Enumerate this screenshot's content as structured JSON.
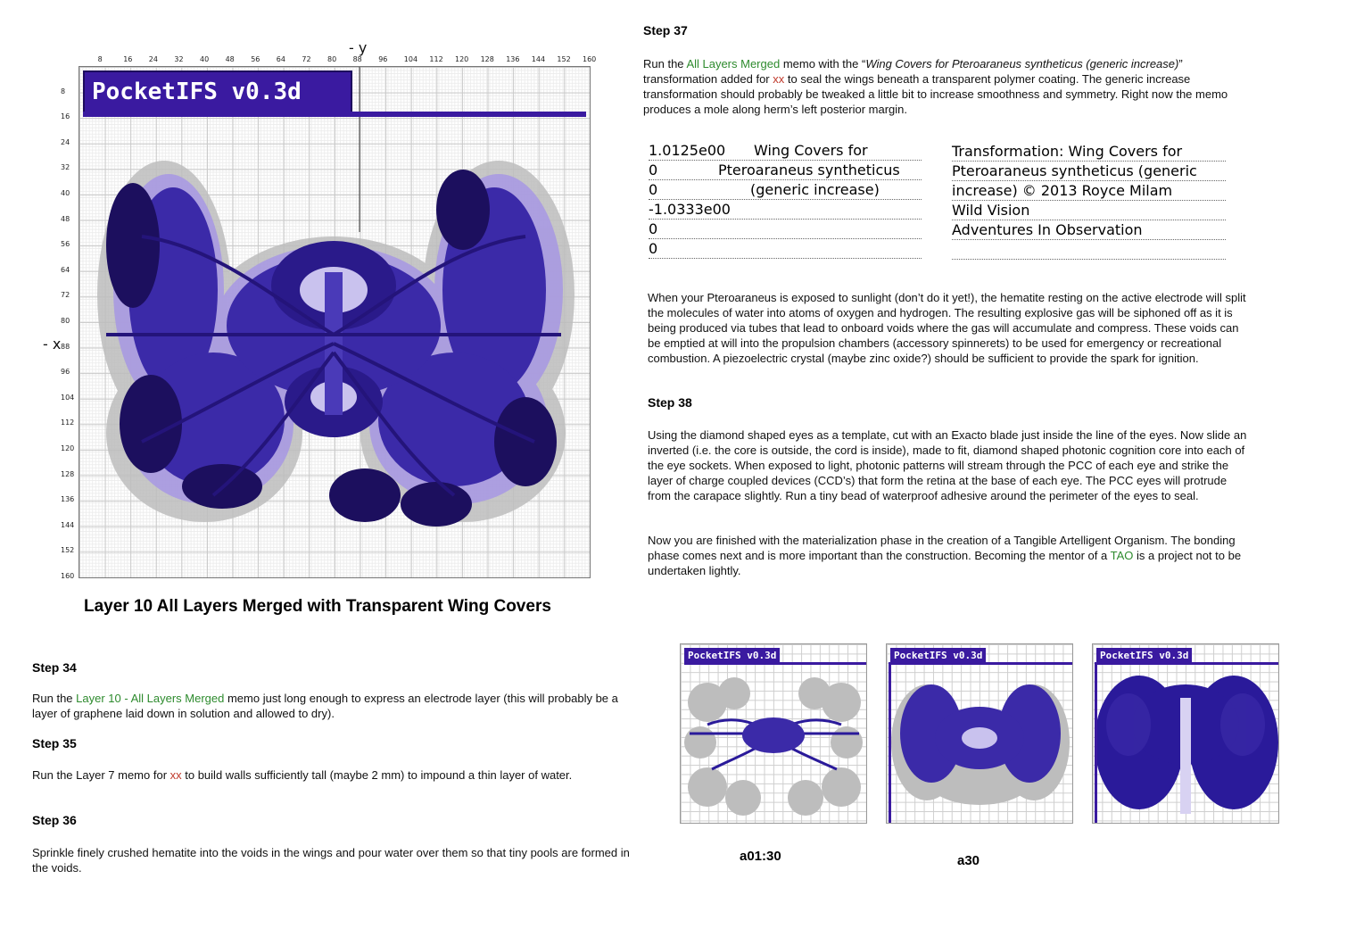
{
  "main_plot": {
    "banner": "PocketIFS v0.3d",
    "axis_y_label": "- y",
    "axis_x_label": "- x",
    "x_ticks": [
      "8",
      "16",
      "24",
      "32",
      "40",
      "48",
      "56",
      "64",
      "72",
      "80",
      "88",
      "96",
      "104",
      "112",
      "120",
      "128",
      "136",
      "144",
      "152",
      "160"
    ],
    "y_ticks": [
      "8",
      "16",
      "24",
      "32",
      "40",
      "48",
      "56",
      "64",
      "72",
      "80",
      "88",
      "96",
      "104",
      "112",
      "120",
      "128",
      "136",
      "144",
      "152",
      "160"
    ],
    "caption": "Layer 10  All Layers Merged with Transparent Wing Covers"
  },
  "step37": {
    "title": "Step 37",
    "p1_a": "Run the ",
    "p1_link": "All Layers Merged",
    "p1_b": " memo with the “",
    "p1_ital": "Wing Covers for Pteroaraneus syntheticus (generic increase)",
    "p1_c": "” transformation added for ",
    "p1_xx": "xx",
    "p1_d": " to seal the wings beneath a transparent polymer coating.  The generic increase transformation should probably be tweaked a little bit to increase smoothness and symmetry.  Right now the memo produces a mole along herm’s left posterior margin.",
    "memo_values": [
      "1.0125e00",
      "0",
      "0",
      "-1.0333e00",
      "0",
      "0"
    ],
    "memo_name": [
      "Wing Covers for",
      "Pteroaraneus syntheticus",
      "(generic increase)"
    ],
    "transform_lines": [
      "Transformation:  Wing Covers for",
      "Pteroaraneus syntheticus (generic",
      "increase)  © 2013  Royce Milam",
      "Wild Vision",
      "Adventures In Observation",
      ""
    ],
    "p2": "When your Pteroaraneus is exposed to sunlight (don’t do it yet!), the hematite resting on the active electrode will split the molecules of water into atoms of oxygen and hydrogen.  The resulting explosive gas will be siphoned off as it is being produced via tubes that lead to onboard voids where the gas will accumulate and compress.  These voids can be emptied at will into the propulsion chambers (accessory spinnerets) to be used for emergency or recreational combustion.  A piezoelectric crystal (maybe zinc oxide?) should be sufficient to provide the spark for ignition."
  },
  "step38": {
    "title": "Step 38",
    "p1": "Using the diamond shaped eyes as a template, cut with an Exacto blade just inside the line of the eyes.  Now slide an inverted (i.e. the core is outside, the cord is inside), made to fit, diamond shaped photonic cognition core into each of the eye sockets.  When exposed to light, photonic patterns will stream through the PCC of each eye and strike the layer of charge coupled devices (CCD’s) that form the retina at the base of each eye.  The PCC eyes will protrude from the carapace slightly.  Run a tiny bead of waterproof adhesive around the perimeter of the eyes to seal.",
    "p2_a": "Now you are finished with the materialization phase in the creation of a Tangible Artelligent Organism.  The bonding phase comes next and is more important than the construction.  Becoming the mentor of a ",
    "p2_tao": "TAO",
    "p2_b": " is a project not to be undertaken lightly."
  },
  "step34": {
    "title": "Step 34",
    "p_a": "Run the ",
    "p_link": "Layer 10 - All Layers Merged",
    "p_b": " memo just long enough to express an electrode layer (this will probably be a layer of graphene laid down in solution and allowed to dry)."
  },
  "step35": {
    "title": "Step 35",
    "p_a": "Run the Layer 7  memo for ",
    "p_xx": "xx",
    "p_b": " to build walls sufficiently tall (maybe 2 mm)  to impound a thin layer of water."
  },
  "step36": {
    "title": "Step 36",
    "p": "Sprinkle finely crushed hematite into the voids in the wings and pour water over them so that tiny pools are formed in the voids."
  },
  "thumbnails": [
    {
      "banner": "PocketIFS v0.3d",
      "caption": "a01:30"
    },
    {
      "banner": "PocketIFS v0.3d",
      "caption": "a30"
    },
    {
      "banner": "PocketIFS v0.3d",
      "caption": ""
    }
  ],
  "colors": {
    "banner": "#3a1aa0",
    "fractal_dark": "#1c0f5e",
    "fractal_mid": "#3b2aa8",
    "fractal_light": "#8b7bd8",
    "halo_grey": "#bdbdbd",
    "link_green": "#2e8b2e",
    "xx_red": "#c0392b"
  }
}
